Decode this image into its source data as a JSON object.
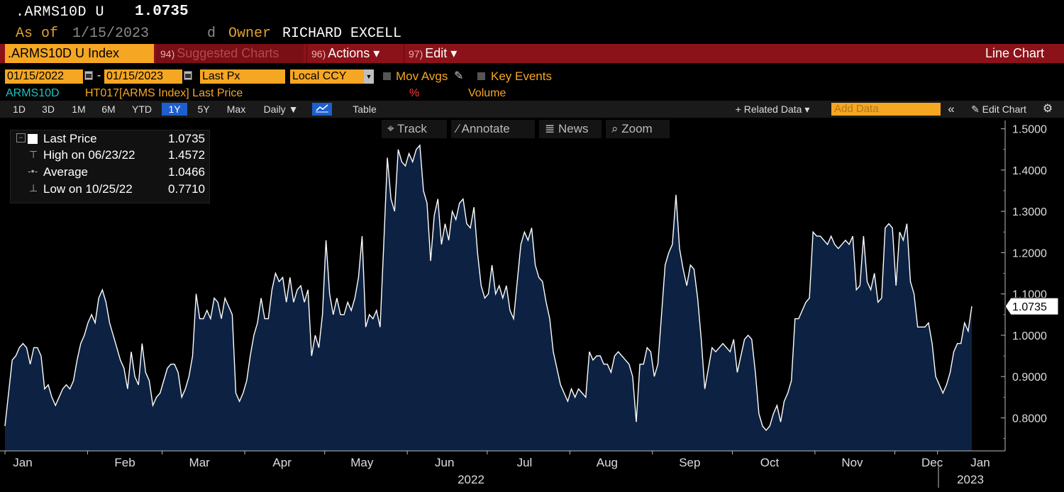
{
  "header": {
    "ticker": ".ARMS10D U",
    "price": "1.0735",
    "as_of_label": "As of",
    "as_of_date": "1/15/2023",
    "d_label": "d",
    "owner_label": "Owner",
    "owner_name": "RICHARD EXCELL"
  },
  "menubar": {
    "index_label": ".ARMS10D U Index",
    "suggested_num": "94)",
    "suggested_label": "Suggested Charts",
    "actions_num": "96)",
    "actions_label": "Actions ▾",
    "edit_num": "97)",
    "edit_label": "Edit ▾",
    "chart_type": "Line Chart"
  },
  "controls": {
    "start_date": "01/15/2022",
    "dash": "-",
    "end_date": "01/15/2023",
    "field": "Last Px",
    "currency": "Local CCY",
    "mov_avgs": "Mov Avgs",
    "key_events": "Key Events"
  },
  "series_row": {
    "security": "ARMS10D",
    "field_desc": "HT017[ARMS Index] Last Price",
    "pct": "%",
    "volume": "Volume"
  },
  "toolbar": {
    "periods": [
      "1D",
      "3D",
      "1M",
      "6M",
      "YTD",
      "1Y",
      "5Y",
      "Max"
    ],
    "selected_period": "1Y",
    "frequency": "Daily ▼",
    "table_label": "Table",
    "related_data": "+ Related Data ▾",
    "add_data_placeholder": "Add Data",
    "collapse": "«",
    "edit_chart": "✎ Edit Chart",
    "settings": "⚙"
  },
  "chart_tools": {
    "track": "Track",
    "annotate": "Annotate",
    "news": "News",
    "zoom": "Zoom"
  },
  "legend": {
    "last_price_label": "Last Price",
    "last_price_value": "1.0735",
    "high_label": "High on 06/23/22",
    "high_value": "1.4572",
    "average_label": "Average",
    "average_value": "1.0466",
    "low_label": "Low on 10/25/22",
    "low_value": "0.7710"
  },
  "chart_data": {
    "type": "area",
    "title": "",
    "xlabel": "",
    "ylabel": "",
    "ylim": [
      0.72,
      1.52
    ],
    "y_ticks": [
      "1.5000",
      "1.4000",
      "1.3000",
      "1.2000",
      "1.1000",
      "1.0000",
      "0.9000",
      "0.8000"
    ],
    "x_month_labels": [
      "Jan",
      "Feb",
      "Mar",
      "Apr",
      "May",
      "Jun",
      "Jul",
      "Aug",
      "Sep",
      "Oct",
      "Nov",
      "Dec",
      "Jan"
    ],
    "x_year_labels": [
      "2022",
      "2023"
    ],
    "last_value_label": "1.0735",
    "colors": {
      "fill": "#0d2242",
      "line": "#ffffff",
      "axis": "#cccccc"
    },
    "series": [
      {
        "values": [
          0.78,
          0.86,
          0.94,
          0.95,
          0.97,
          0.98,
          0.97,
          0.93,
          0.97,
          0.97,
          0.95,
          0.87,
          0.88,
          0.85,
          0.83,
          0.85,
          0.87,
          0.88,
          0.87,
          0.89,
          0.94,
          0.98,
          1.0,
          1.03,
          1.05,
          1.03,
          1.09,
          1.11,
          1.08,
          1.03,
          1.0,
          0.97,
          0.94,
          0.92,
          0.87,
          0.96,
          0.9,
          0.88,
          0.98,
          0.91,
          0.89,
          0.83,
          0.85,
          0.86,
          0.89,
          0.92,
          0.93,
          0.93,
          0.91,
          0.85,
          0.87,
          0.9,
          0.95,
          1.1,
          1.04,
          1.04,
          1.06,
          1.04,
          1.09,
          1.08,
          1.04,
          1.09,
          1.07,
          1.05,
          0.86,
          0.84,
          0.86,
          0.89,
          0.95,
          1.0,
          1.03,
          1.09,
          1.04,
          1.04,
          1.11,
          1.15,
          1.13,
          1.14,
          1.08,
          1.14,
          1.08,
          1.11,
          1.12,
          1.08,
          1.11,
          0.95,
          1.0,
          0.97,
          1.05,
          1.23,
          1.1,
          1.05,
          1.09,
          1.05,
          1.05,
          1.08,
          1.06,
          1.09,
          1.14,
          1.24,
          1.02,
          1.05,
          1.04,
          1.06,
          1.02,
          1.22,
          1.43,
          1.33,
          1.3,
          1.45,
          1.42,
          1.41,
          1.44,
          1.42,
          1.45,
          1.46,
          1.35,
          1.32,
          1.18,
          1.29,
          1.33,
          1.22,
          1.27,
          1.23,
          1.3,
          1.28,
          1.32,
          1.33,
          1.27,
          1.26,
          1.31,
          1.2,
          1.12,
          1.09,
          1.1,
          1.17,
          1.1,
          1.12,
          1.09,
          1.12,
          1.06,
          1.04,
          1.13,
          1.22,
          1.25,
          1.23,
          1.26,
          1.17,
          1.14,
          1.13,
          1.08,
          1.04,
          0.96,
          0.92,
          0.88,
          0.86,
          0.84,
          0.87,
          0.85,
          0.87,
          0.86,
          0.85,
          0.96,
          0.94,
          0.95,
          0.95,
          0.93,
          0.93,
          0.91,
          0.95,
          0.96,
          0.95,
          0.94,
          0.93,
          0.9,
          0.79,
          0.93,
          0.93,
          0.97,
          0.96,
          0.9,
          0.93,
          1.05,
          1.17,
          1.2,
          1.22,
          1.34,
          1.21,
          1.16,
          1.12,
          1.17,
          1.16,
          1.09,
          0.99,
          0.87,
          0.92,
          0.97,
          0.96,
          0.97,
          0.98,
          0.97,
          0.96,
          0.99,
          0.91,
          0.95,
          0.99,
          1.0,
          0.99,
          0.91,
          0.81,
          0.78,
          0.77,
          0.78,
          0.81,
          0.83,
          0.79,
          0.84,
          0.86,
          0.89,
          1.04,
          1.04,
          1.06,
          1.08,
          1.09,
          1.25,
          1.24,
          1.24,
          1.23,
          1.22,
          1.24,
          1.22,
          1.21,
          1.22,
          1.23,
          1.22,
          1.24,
          1.11,
          1.12,
          1.24,
          1.13,
          1.11,
          1.15,
          1.08,
          1.09,
          1.26,
          1.27,
          1.26,
          1.12,
          1.25,
          1.23,
          1.27,
          1.13,
          1.1,
          1.02,
          1.02,
          1.02,
          1.03,
          0.98,
          0.9,
          0.88,
          0.86,
          0.88,
          0.91,
          0.96,
          0.98,
          0.98,
          1.03,
          1.01,
          1.07
        ]
      }
    ]
  }
}
